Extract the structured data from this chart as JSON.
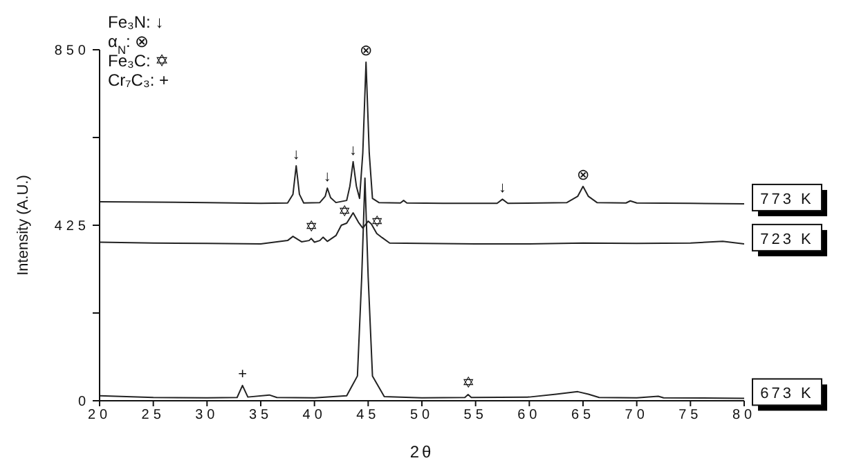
{
  "chart_data": {
    "type": "line",
    "xlabel": "2θ",
    "ylabel": "Intensity (A.U.)",
    "xlim": [
      20,
      80
    ],
    "xticks": [
      20,
      25,
      30,
      35,
      40,
      45,
      50,
      55,
      60,
      65,
      70,
      75,
      80
    ],
    "ylim": [
      0,
      850
    ],
    "yticks": [
      0,
      {
        "value": 212.5,
        "label": null
      },
      425,
      {
        "value": 637.5,
        "label": null
      },
      850
    ],
    "marker": "none",
    "line_style": "solid",
    "series": [
      {
        "name": "773 K",
        "color": "#222222",
        "x": [
          20,
          25,
          30,
          35,
          37.5,
          38,
          38.3,
          38.6,
          39,
          40.5,
          41,
          41.2,
          41.5,
          42,
          43,
          43.3,
          43.6,
          43.9,
          44.2,
          44.5,
          44.8,
          45.1,
          45.4,
          46,
          48,
          48.3,
          48.6,
          52,
          57,
          57.5,
          58,
          63.5,
          64.5,
          65,
          65.5,
          66.3,
          69,
          69.4,
          70,
          75,
          80
        ],
        "values": [
          482,
          481,
          480,
          478,
          479,
          500,
          569,
          500,
          479,
          480,
          495,
          515,
          492,
          480,
          485,
          520,
          579,
          520,
          490,
          600,
          820,
          600,
          490,
          480,
          479,
          485,
          479,
          478,
          478,
          488,
          478,
          480,
          495,
          519,
          495,
          480,
          479,
          484,
          479,
          478,
          477
        ]
      },
      {
        "name": "723 K",
        "color": "#222222",
        "x": [
          20,
          25,
          30,
          35,
          37.5,
          38,
          38.8,
          39.5,
          39.7,
          40,
          40.5,
          40.8,
          41.2,
          42,
          42.5,
          43,
          43.6,
          44.1,
          44.5,
          45,
          45.3,
          45.8,
          46.3,
          47,
          50,
          55,
          60,
          65,
          70,
          75,
          78,
          80
        ],
        "values": [
          384,
          382,
          381,
          380,
          388,
          398,
          385,
          388,
          393,
          384,
          388,
          396,
          386,
          400,
          425,
          430,
          455,
          432,
          418,
          435,
          428,
          405,
          395,
          382,
          381,
          380,
          380,
          382,
          381,
          382,
          386,
          380
        ]
      },
      {
        "name": "673 K",
        "color": "#222222",
        "x": [
          20,
          25,
          30,
          32.8,
          33.3,
          33.8,
          35.8,
          36.5,
          40,
          43,
          44,
          44.4,
          44.7,
          45,
          45.4,
          46.5,
          50,
          54,
          54.3,
          54.6,
          60,
          62.5,
          64.5,
          65.5,
          66.5,
          70,
          72,
          72.5,
          80
        ],
        "values": [
          12,
          8,
          7,
          8,
          37,
          9,
          14,
          8,
          7,
          12,
          60,
          300,
          539,
          300,
          60,
          10,
          7,
          8,
          15,
          8,
          9,
          16,
          22,
          16,
          8,
          7,
          11,
          7,
          6
        ]
      }
    ],
    "annotations": [
      "Fe₃N: ↓",
      "α$_{N}$: ⊗",
      "Fe₃C: ✡",
      "Cr₇C₃: +",
      {
        "text": "↓",
        "x": 38.3,
        "y": 569
      },
      {
        "text": "↓",
        "x": 41.2,
        "y": 515
      },
      {
        "text": "↓",
        "x": 43.6,
        "y": 579
      },
      {
        "text": "↓",
        "x": 57.5,
        "y": 488
      },
      {
        "text": "⊗",
        "x": 44.8,
        "y": 820
      },
      {
        "text": "⊗",
        "x": 65,
        "y": 519
      },
      {
        "text": "✡",
        "x": 39.7,
        "y": 393
      },
      {
        "text": "✡",
        "x": 42.8,
        "y": 430
      },
      {
        "text": "✡",
        "x": 45.8,
        "y": 405
      },
      {
        "text": "✡",
        "x": 54.3,
        "y": 15
      },
      {
        "text": "+",
        "x": 33.3,
        "y": 37
      }
    ]
  }
}
